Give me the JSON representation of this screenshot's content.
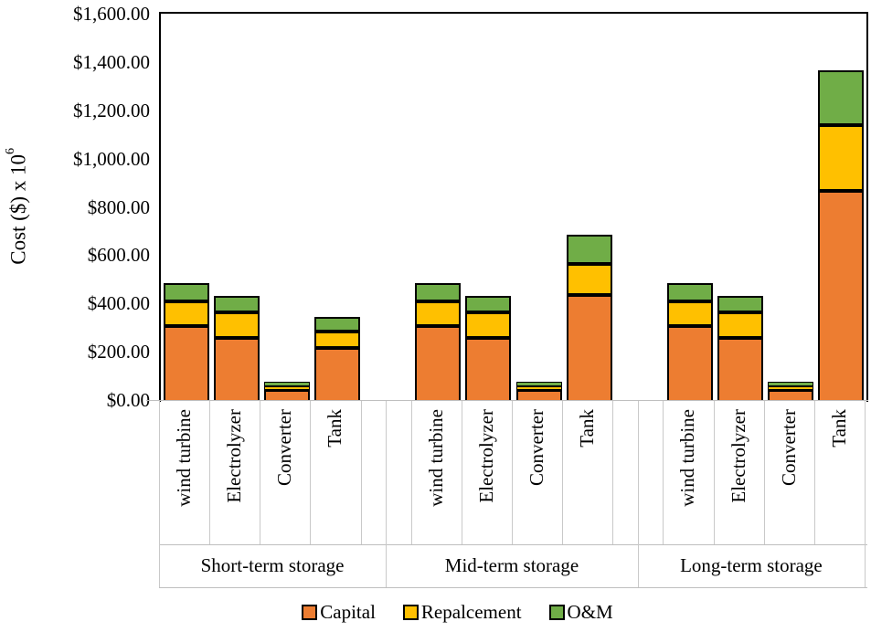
{
  "chart_data": {
    "type": "bar",
    "stacked": true,
    "title": "",
    "ylabel": "Cost ($) x 10^6",
    "ylabel_base": "Cost ($) x 10",
    "ylabel_exp": "6",
    "ylim": [
      0,
      1600
    ],
    "ytick_step": 200,
    "ytick_labels": [
      "$0.00",
      "$200.00",
      "$400.00",
      "$600.00",
      "$800.00",
      "$1,000.00",
      "$1,200.00",
      "$1,400.00",
      "$1,600.00"
    ],
    "grid": false,
    "legend_position": "bottom",
    "legend": [
      {
        "label": "Capital",
        "color": "#ED7D31"
      },
      {
        "label": "Repalcement",
        "color": "#FFC000"
      },
      {
        "label": "O&M",
        "color": "#70AD47"
      }
    ],
    "groups": [
      {
        "label": "Short-term storage",
        "categories": [
          "wind turbine",
          "Electrolyzer",
          "Converter",
          "Tank"
        ],
        "series": [
          {
            "name": "Capital",
            "values": [
              307,
              257,
              42,
              215
            ]
          },
          {
            "name": "Repalcement",
            "values": [
              100,
              105,
              13,
              68
            ]
          },
          {
            "name": "O&M",
            "values": [
              78,
              71,
              20,
              63
            ]
          }
        ]
      },
      {
        "label": "Mid-term storage",
        "categories": [
          "wind turbine",
          "Electrolyzer",
          "Converter",
          "Tank"
        ],
        "series": [
          {
            "name": "Capital",
            "values": [
              307,
              257,
              42,
              435
            ]
          },
          {
            "name": "Repalcement",
            "values": [
              100,
              105,
              13,
              130
            ]
          },
          {
            "name": "O&M",
            "values": [
              78,
              71,
              20,
              120
            ]
          }
        ]
      },
      {
        "label": "Long-term storage",
        "categories": [
          "wind turbine",
          "Electrolyzer",
          "Converter",
          "Tank"
        ],
        "series": [
          {
            "name": "Capital",
            "values": [
              307,
              257,
              42,
              866
            ]
          },
          {
            "name": "Repalcement",
            "values": [
              100,
              105,
              13,
              271
            ]
          },
          {
            "name": "O&M",
            "values": [
              78,
              71,
              20,
              230
            ]
          }
        ]
      }
    ],
    "colors": {
      "capital": "#ED7D31",
      "replacement": "#FFC000",
      "om": "#70AD47",
      "bar_border": "#000000",
      "axis_line": "#BFBFBF"
    }
  }
}
